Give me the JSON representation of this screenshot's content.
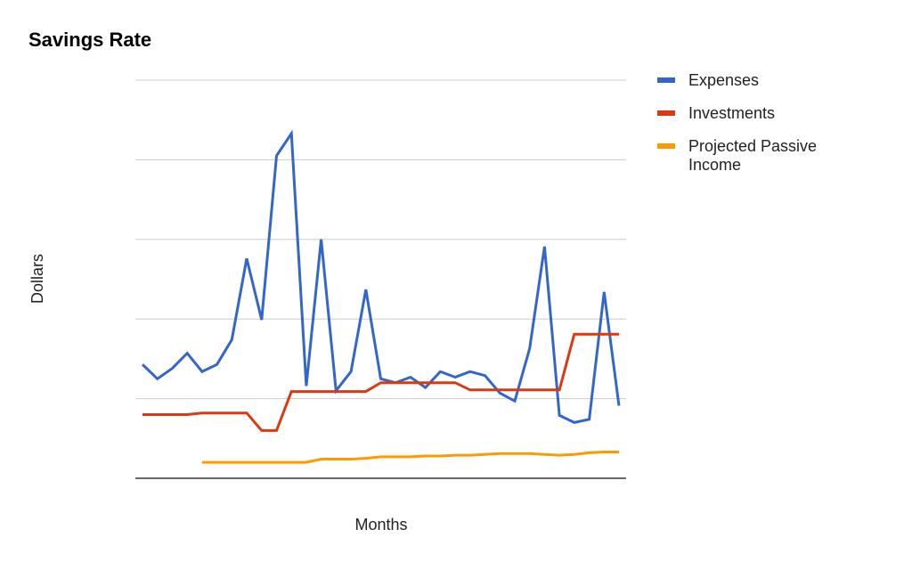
{
  "chart_data": {
    "type": "line",
    "title": "Savings Rate",
    "xlabel": "Months",
    "ylabel": "Dollars",
    "x": [
      1,
      2,
      3,
      4,
      5,
      6,
      7,
      8,
      9,
      10,
      11,
      12,
      13,
      14,
      15,
      16,
      17,
      18,
      19,
      20,
      21,
      22,
      23,
      24,
      25,
      26,
      27,
      28,
      29,
      30,
      31,
      32,
      33
    ],
    "ylim": [
      0,
      5
    ],
    "y_ticks": [
      0,
      1,
      2,
      3,
      4,
      5
    ],
    "x_ticks_shown": false,
    "y_tick_labels_shown": false,
    "grid": true,
    "legend_position": "right",
    "series": [
      {
        "name": "Expenses",
        "color": "#3366cc",
        "values": [
          1.43,
          1.25,
          1.38,
          1.57,
          1.34,
          1.43,
          1.74,
          2.76,
          1.99,
          4.05,
          4.33,
          1.16,
          3.0,
          1.1,
          1.34,
          2.37,
          1.25,
          1.2,
          1.27,
          1.14,
          1.34,
          1.27,
          1.34,
          1.29,
          1.07,
          0.97,
          1.63,
          2.91,
          0.79,
          0.7,
          0.74,
          2.34,
          0.91
        ]
      },
      {
        "name": "Investments",
        "color": "#dc3912",
        "values": [
          0.8,
          0.8,
          0.8,
          0.8,
          0.82,
          0.82,
          0.82,
          0.82,
          0.6,
          0.6,
          1.09,
          1.09,
          1.09,
          1.09,
          1.09,
          1.09,
          1.2,
          1.2,
          1.2,
          1.2,
          1.2,
          1.2,
          1.11,
          1.11,
          1.11,
          1.11,
          1.11,
          1.11,
          1.11,
          1.81,
          1.81,
          1.81,
          1.81
        ]
      },
      {
        "name": "Projected Passive Income",
        "color": "#ff9900",
        "values": [
          null,
          null,
          null,
          null,
          0.2,
          0.2,
          0.2,
          0.2,
          0.2,
          0.2,
          0.2,
          0.2,
          0.24,
          0.24,
          0.24,
          0.25,
          0.27,
          0.27,
          0.27,
          0.28,
          0.28,
          0.29,
          0.29,
          0.3,
          0.31,
          0.31,
          0.31,
          0.3,
          0.29,
          0.3,
          0.32,
          0.33,
          0.33
        ]
      }
    ]
  }
}
